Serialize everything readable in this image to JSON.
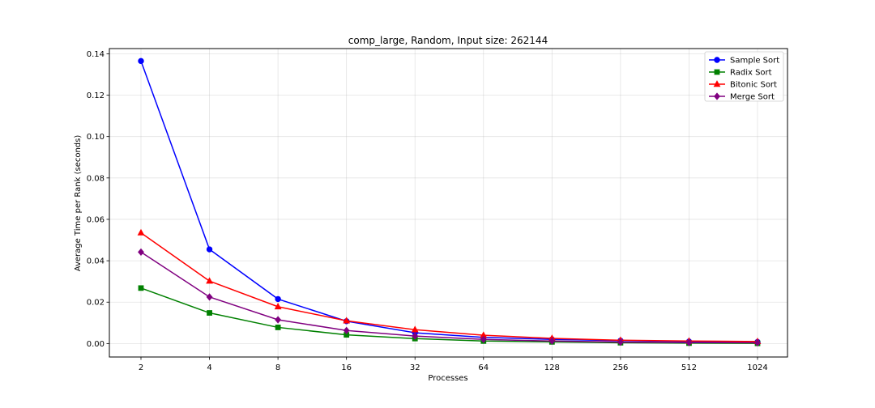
{
  "chart_data": {
    "type": "line",
    "title": "comp_large, Random, Input size: 262144",
    "xlabel": "Processes",
    "ylabel": "Average Time per Rank (seconds)",
    "x": [
      "2",
      "4",
      "8",
      "16",
      "32",
      "64",
      "128",
      "256",
      "512",
      "1024"
    ],
    "x_scale": "categorical (powers of 2, evenly spaced)",
    "ylim": [
      -0.0065,
      0.1425
    ],
    "yticks": [
      "0.00",
      "0.02",
      "0.04",
      "0.06",
      "0.08",
      "0.10",
      "0.12",
      "0.14"
    ],
    "grid": true,
    "legend_position": "top-right",
    "series": [
      {
        "name": "Sample Sort",
        "color": "#0000ff",
        "marker": "circle",
        "values": [
          0.1365,
          0.0455,
          0.0215,
          0.0108,
          0.0052,
          0.003,
          0.002,
          0.0014,
          0.001,
          0.0008
        ]
      },
      {
        "name": "Radix Sort",
        "color": "#008000",
        "marker": "square",
        "values": [
          0.0268,
          0.0148,
          0.0078,
          0.0042,
          0.0024,
          0.0012,
          0.0008,
          0.0004,
          0.0002,
          0.0001
        ]
      },
      {
        "name": "Bitonic Sort",
        "color": "#ff0000",
        "marker": "triangle",
        "values": [
          0.0535,
          0.0302,
          0.0178,
          0.011,
          0.0067,
          0.004,
          0.0025,
          0.0016,
          0.0012,
          0.001
        ]
      },
      {
        "name": "Merge Sort",
        "color": "#800080",
        "marker": "diamond",
        "values": [
          0.0442,
          0.0225,
          0.0115,
          0.0063,
          0.0036,
          0.002,
          0.0012,
          0.0007,
          0.0005,
          0.0004
        ]
      }
    ]
  }
}
